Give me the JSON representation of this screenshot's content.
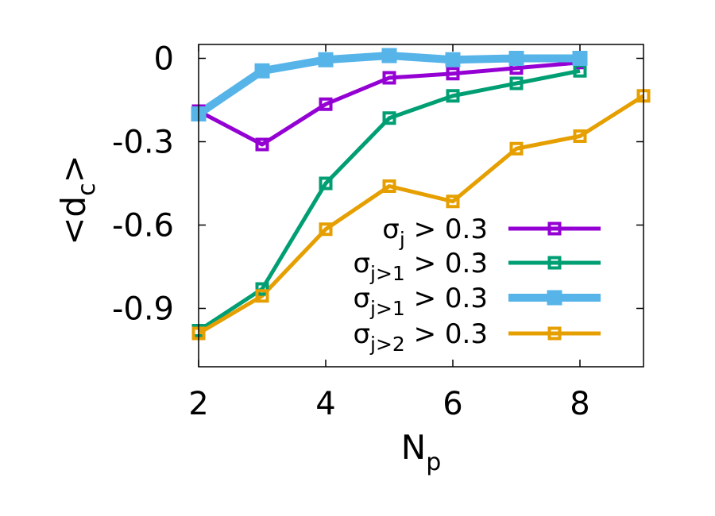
{
  "chart_data": {
    "type": "line",
    "xlabel": {
      "main": "N",
      "sub": "p"
    },
    "ylabel": {
      "open": "<d",
      "sub": "c",
      "close": ">"
    },
    "xlim": [
      2,
      9
    ],
    "ylim": [
      -1.11,
      0.05
    ],
    "xticks": [
      2,
      4,
      6,
      8
    ],
    "xtick_labels": [
      "2",
      "4",
      "6",
      "8"
    ],
    "yticks": [
      0,
      -0.3,
      -0.6,
      -0.9
    ],
    "ytick_labels": [
      "0",
      "-0.3",
      "-0.6",
      "-0.9"
    ],
    "legend_position": "lower-right",
    "series": [
      {
        "name": "σj > 0.3",
        "legend": {
          "main": "σ",
          "sub": "j",
          "rest": " > 0.3"
        },
        "color": "#9400d3",
        "width": 5,
        "marker_size": 13,
        "marker_fill": false,
        "x": [
          2,
          3,
          4,
          5,
          6,
          7,
          8
        ],
        "y": [
          -0.19,
          -0.31,
          -0.165,
          -0.07,
          -0.055,
          -0.035,
          -0.015
        ]
      },
      {
        "name": "σj>1 > 0.3",
        "legend": {
          "main": "σ",
          "sub": "j>1",
          "rest": " > 0.3"
        },
        "color": "#009e73",
        "width": 5,
        "marker_size": 13,
        "marker_fill": false,
        "x": [
          2,
          3,
          4,
          5,
          6,
          7,
          8
        ],
        "y": [
          -0.98,
          -0.83,
          -0.45,
          -0.215,
          -0.135,
          -0.09,
          -0.045
        ]
      },
      {
        "name": "σj>1 > 0.3",
        "legend": {
          "main": "σ",
          "sub": "j>1",
          "rest": " > 0.3"
        },
        "color": "#56b4e9",
        "width": 10,
        "marker_size": 18,
        "marker_fill": true,
        "x": [
          2,
          3,
          4,
          5,
          6,
          7,
          8
        ],
        "y": [
          -0.2,
          -0.045,
          -0.005,
          0.01,
          -0.005,
          0.0,
          0.0
        ]
      },
      {
        "name": "σj>2 > 0.3",
        "legend": {
          "main": "σ",
          "sub": "j>2",
          "rest": " > 0.3"
        },
        "color": "#e69f00",
        "width": 5,
        "marker_size": 13,
        "marker_fill": false,
        "x": [
          2,
          3,
          4,
          5,
          6,
          7,
          8,
          9
        ],
        "y": [
          -0.99,
          -0.855,
          -0.615,
          -0.46,
          -0.515,
          -0.325,
          -0.28,
          -0.135
        ]
      }
    ]
  }
}
